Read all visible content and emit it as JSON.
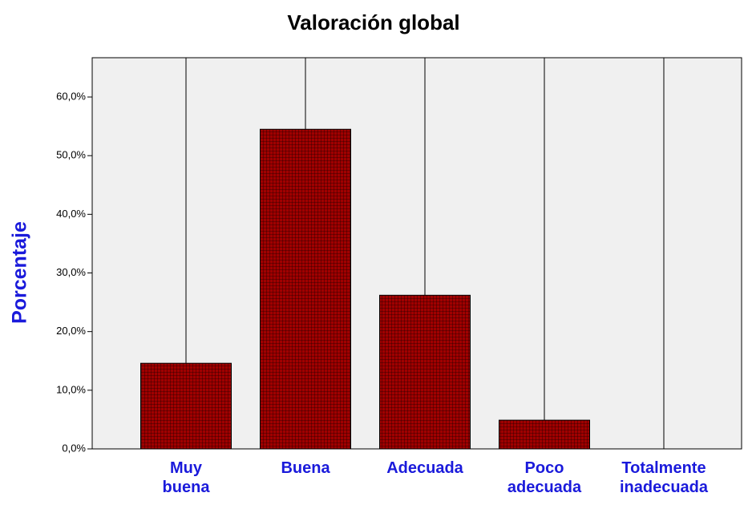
{
  "chart_data": {
    "type": "bar",
    "title": "Valoración global",
    "ylabel": "Porcentaje",
    "categories": [
      "Muy buena",
      "Buena",
      "Adecuada",
      "Poco adecuada",
      "Totalmente inadecuada"
    ],
    "values": [
      14.6,
      54.5,
      26.2,
      4.9,
      0
    ],
    "color": "#a00000",
    "ylim": [
      0,
      66.7
    ],
    "yticks": [
      {
        "value": 0,
        "label": "0,0%"
      },
      {
        "value": 10,
        "label": "10,0%"
      },
      {
        "value": 20,
        "label": "20,0%"
      },
      {
        "value": 30,
        "label": "30,0%"
      },
      {
        "value": 40,
        "label": "40,0%"
      },
      {
        "value": 50,
        "label": "50,0%"
      },
      {
        "value": 60,
        "label": "60,0%"
      }
    ]
  }
}
